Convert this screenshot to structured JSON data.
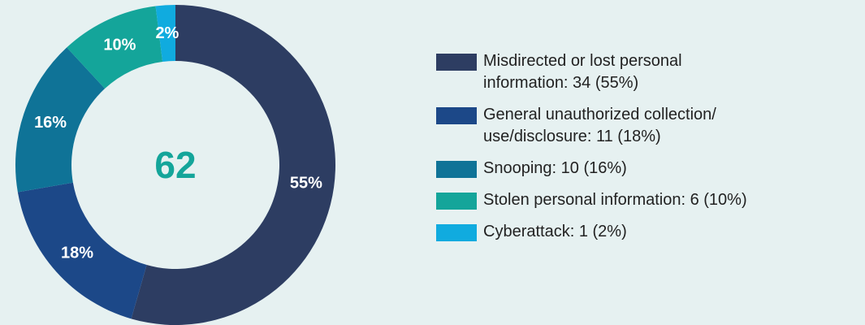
{
  "chart_data": {
    "type": "donut",
    "total": 62,
    "categories": [
      "Misdirected or lost personal information: 34 (55%)",
      "General unauthorized collection/use/disclosure: 11 (18%)",
      "Snooping: 10 (16%)",
      "Stolen personal information: 6 (10%)",
      "Cyberattack: 1 (2%)"
    ],
    "values": [
      55,
      18,
      16,
      10,
      2
    ],
    "colors": [
      "#2d3d62",
      "#1c4888",
      "#0f7397",
      "#14a59a",
      "#10abdf"
    ]
  }
}
